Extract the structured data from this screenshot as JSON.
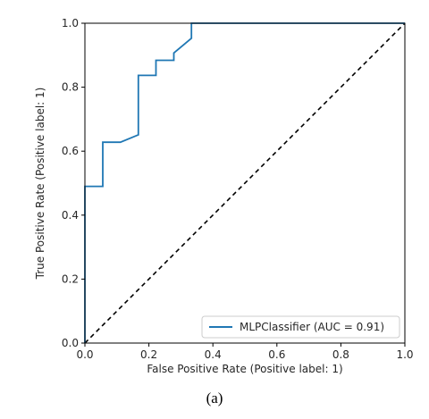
{
  "chart_data": {
    "type": "line",
    "xlabel": "False Positive Rate (Positive label: 1)",
    "ylabel": "True Positive Rate (Positive label: 1)",
    "xlim": [
      0,
      1
    ],
    "ylim": [
      0,
      1
    ],
    "x_ticks": [
      "0.0",
      "0.2",
      "0.4",
      "0.6",
      "0.8",
      "1.0"
    ],
    "y_ticks": [
      "0.0",
      "0.2",
      "0.4",
      "0.6",
      "0.8",
      "1.0"
    ],
    "grid": false,
    "legend_position": "bottom-right",
    "series": [
      {
        "name": "MLPClassifier (AUC = 0.91)",
        "color": "#1f77b4",
        "x": [
          0.0,
          0.0,
          0.0,
          0.056,
          0.056,
          0.111,
          0.167,
          0.167,
          0.222,
          0.222,
          0.278,
          0.278,
          0.333,
          0.333,
          1.0
        ],
        "y": [
          0.0,
          0.0,
          0.49,
          0.49,
          0.628,
          0.628,
          0.651,
          0.837,
          0.837,
          0.884,
          0.884,
          0.907,
          0.953,
          1.0,
          1.0
        ]
      }
    ],
    "chance_line": {
      "x": [
        0,
        1
      ],
      "y": [
        0,
        1
      ],
      "color": "#000000",
      "style": "dashed"
    }
  },
  "caption": "(a)"
}
